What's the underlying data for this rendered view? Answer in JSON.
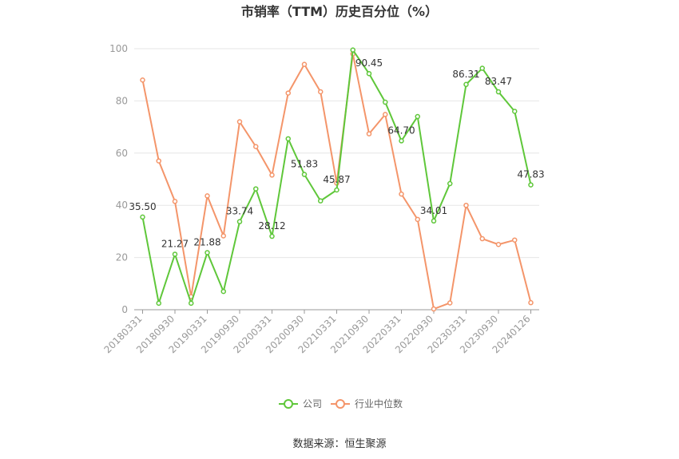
{
  "chart_data": {
    "type": "line",
    "title": "市销率（TTM）历史百分位（%）",
    "source": "数据来源：恒生聚源",
    "xlabel": "",
    "ylabel": "",
    "ylim": [
      0,
      100
    ],
    "yticks": [
      0,
      20,
      40,
      60,
      80,
      100
    ],
    "grid": true,
    "legend_position": "bottom",
    "xtick_labels": [
      "20180331",
      "20180930",
      "20190331",
      "20190930",
      "20200331",
      "20200930",
      "20210331",
      "20210930",
      "20220331",
      "20220930",
      "20230331",
      "20230930",
      "20240126"
    ],
    "x": [
      "20180331",
      "20180630",
      "20180930",
      "20181231",
      "20190331",
      "20190630",
      "20190930",
      "20191231",
      "20200331",
      "20200630",
      "20200930",
      "20201231",
      "20210331",
      "20210630",
      "20210930",
      "20211231",
      "20220331",
      "20220630",
      "20220930",
      "20221231",
      "20230331",
      "20230630",
      "20230930",
      "20231231",
      "20240126"
    ],
    "series": [
      {
        "name": "公司",
        "color": "#5fc73a",
        "values": [
          35.5,
          2.5,
          21.27,
          2.5,
          21.88,
          7.0,
          33.74,
          46.3,
          28.12,
          65.5,
          51.83,
          41.7,
          45.87,
          99.5,
          90.45,
          79.5,
          64.7,
          74.0,
          34.01,
          48.3,
          86.31,
          92.5,
          83.47,
          76.0,
          47.83
        ],
        "labels": [
          "35.50",
          "",
          "21.27",
          "",
          "21.88",
          "",
          "33.74",
          "",
          "28.12",
          "",
          "51.83",
          "",
          "45.87",
          "",
          "90.45",
          "",
          "64.70",
          "",
          "34.01",
          "",
          "86.31",
          "",
          "83.47",
          "",
          "47.83"
        ]
      },
      {
        "name": "行业中位数",
        "color": "#f4956a",
        "values": [
          88.0,
          57.0,
          41.5,
          5.0,
          43.6,
          28.3,
          72.0,
          62.5,
          51.6,
          83.0,
          94.0,
          83.5,
          48.5,
          98.0,
          67.4,
          74.8,
          44.3,
          34.6,
          0.3,
          2.6,
          40.0,
          27.2,
          25.0,
          26.7,
          2.7
        ]
      }
    ]
  }
}
